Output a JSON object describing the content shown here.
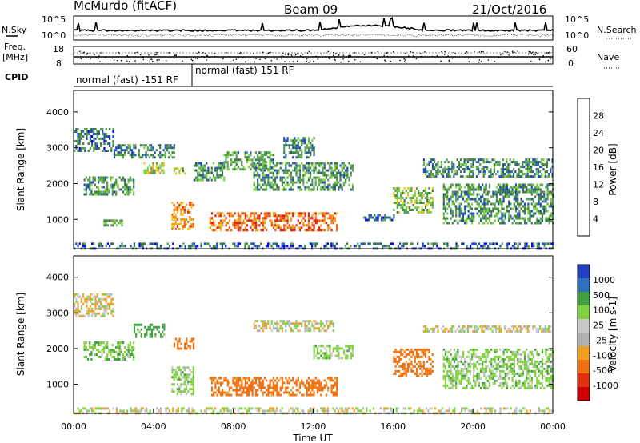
{
  "header": {
    "station": "McMurdo (fitACF)",
    "beam": "Beam 09",
    "date": "21/Oct/2016"
  },
  "top_panels": {
    "nsky_label": "N.Sky",
    "nsearch_label": "N.Search",
    "log_top": "10^5",
    "log_bottom": "10^0",
    "freq_label": "Freq.",
    "freq_unit": "[MHz]",
    "freq_ticks": [
      "18",
      "8"
    ],
    "nave_label": "Nave",
    "nave_ticks": [
      "60",
      "0"
    ],
    "cpid_label": "CPID",
    "cpid_modes": [
      "normal (fast) -151 RF",
      "normal (fast) 151 RF"
    ]
  },
  "colors": {
    "power_scale": [
      "#0000ff",
      "#1f4fb5",
      "#3d7d3d",
      "#55a055",
      "#7dd040",
      "#f0c820",
      "#f59a10",
      "#f06010",
      "#e02010",
      "#c00000"
    ],
    "velocity_scale": [
      "#2040c0",
      "#3070c0",
      "#40a040",
      "#80d040",
      "#c8c8c8",
      "#b0b0b0",
      "#f0a020",
      "#f07010",
      "#e03010",
      "#d00000"
    ]
  },
  "chart_data": [
    {
      "type": "heatmap",
      "title": "",
      "quantity": "Power",
      "colorbar_label": "Power [dB]",
      "colorbar_ticks": [
        "28",
        "24",
        "20",
        "16",
        "12",
        "8",
        "4"
      ],
      "ylabel": "Slant Range [km]",
      "yticks": [
        "4000",
        "3000",
        "2000",
        "1000"
      ],
      "ylim": [
        180,
        4600
      ],
      "xlim_hours": [
        0,
        24
      ],
      "x_tick_labels": [
        "00:00",
        "04:00",
        "08:00",
        "12:00",
        "16:00",
        "20:00",
        "00:00"
      ],
      "clusters": [
        {
          "t0": 0.0,
          "t1": 2.0,
          "r0": 2900,
          "r1": 3550,
          "value": 7
        },
        {
          "t0": 0.5,
          "t1": 3.0,
          "r0": 1700,
          "r1": 2200,
          "value": 9
        },
        {
          "t0": 1.5,
          "t1": 2.5,
          "r0": 850,
          "r1": 1000,
          "value": 11
        },
        {
          "t0": 2.0,
          "t1": 5.0,
          "r0": 2700,
          "r1": 3100,
          "value": 8
        },
        {
          "t0": 3.5,
          "t1": 4.5,
          "r0": 2300,
          "r1": 2600,
          "value": 14
        },
        {
          "t0": 5.0,
          "t1": 5.6,
          "r0": 2250,
          "r1": 2450,
          "value": 13
        },
        {
          "t0": 4.9,
          "t1": 6.0,
          "r0": 750,
          "r1": 1500,
          "value": 20
        },
        {
          "t0": 6.0,
          "t1": 7.5,
          "r0": 2100,
          "r1": 2600,
          "value": 9
        },
        {
          "t0": 6.8,
          "t1": 13.2,
          "r0": 700,
          "r1": 1200,
          "value": 22
        },
        {
          "t0": 7.5,
          "t1": 10.0,
          "r0": 2400,
          "r1": 2900,
          "value": 10
        },
        {
          "t0": 9.0,
          "t1": 14.0,
          "r0": 1800,
          "r1": 2600,
          "value": 9
        },
        {
          "t0": 10.5,
          "t1": 12.0,
          "r0": 2700,
          "r1": 3300,
          "value": 8
        },
        {
          "t0": 14.5,
          "t1": 16.0,
          "r0": 950,
          "r1": 1150,
          "value": 7
        },
        {
          "t0": 16.0,
          "t1": 18.0,
          "r0": 1200,
          "r1": 1900,
          "value": 12
        },
        {
          "t0": 17.5,
          "t1": 24.0,
          "r0": 2200,
          "r1": 2700,
          "value": 8
        },
        {
          "t0": 18.5,
          "t1": 24.0,
          "r0": 900,
          "r1": 2000,
          "value": 9
        }
      ],
      "ground_scatter_band": {
        "t0": 0,
        "t1": 24,
        "r0": 180,
        "r1": 350,
        "value": 6
      }
    },
    {
      "type": "heatmap",
      "title": "",
      "quantity": "Velocity",
      "colorbar_label": "Velocity [m s-1]",
      "colorbar_ticks": [
        "1000",
        "500",
        "100",
        "25",
        "-25",
        "-100",
        "-500",
        "-1000"
      ],
      "ylabel": "Slant Range [km]",
      "yticks": [
        "4000",
        "3000",
        "2000",
        "1000"
      ],
      "ylim": [
        180,
        4600
      ],
      "xlim_hours": [
        0,
        24
      ],
      "x_tick_labels": [
        "00:00",
        "04:00",
        "08:00",
        "12:00",
        "16:00",
        "20:00",
        "00:00"
      ],
      "xlabel": "Time UT",
      "clusters": [
        {
          "t0": 0.0,
          "t1": 2.0,
          "r0": 2900,
          "r1": 3550,
          "value": -10
        },
        {
          "t0": 0.5,
          "t1": 3.0,
          "r0": 1700,
          "r1": 2200,
          "value": 80
        },
        {
          "t0": 3.0,
          "t1": 4.5,
          "r0": 2300,
          "r1": 2700,
          "value": 150
        },
        {
          "t0": 5.0,
          "t1": 6.0,
          "r0": 2000,
          "r1": 2300,
          "value": -200
        },
        {
          "t0": 4.9,
          "t1": 6.0,
          "r0": 750,
          "r1": 1500,
          "value": 50
        },
        {
          "t0": 6.8,
          "t1": 13.2,
          "r0": 700,
          "r1": 1200,
          "value": -150
        },
        {
          "t0": 9.0,
          "t1": 13.0,
          "r0": 2500,
          "r1": 2800,
          "value": 0
        },
        {
          "t0": 12.0,
          "t1": 14.0,
          "r0": 1700,
          "r1": 2100,
          "value": 60
        },
        {
          "t0": 16.0,
          "t1": 18.0,
          "r0": 1200,
          "r1": 2000,
          "value": -150
        },
        {
          "t0": 17.5,
          "t1": 24.0,
          "r0": 2450,
          "r1": 2650,
          "value": 0
        },
        {
          "t0": 18.5,
          "t1": 24.0,
          "r0": 900,
          "r1": 2000,
          "value": 60
        }
      ],
      "ground_scatter_band": {
        "t0": 0,
        "t1": 24,
        "r0": 180,
        "r1": 350,
        "value": 10
      }
    }
  ]
}
